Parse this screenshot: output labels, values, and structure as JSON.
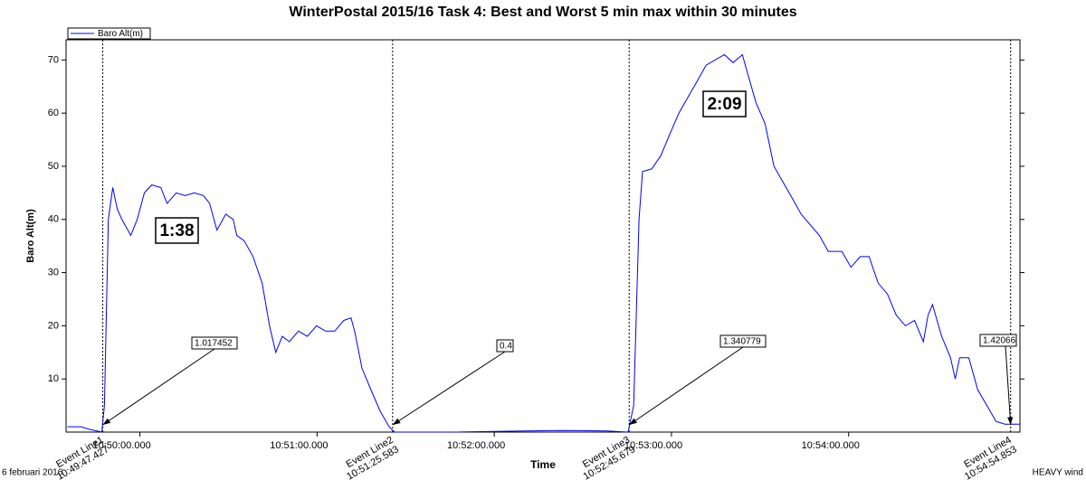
{
  "chart_data": {
    "type": "line",
    "title": "WinterPostal 2015/16 Task 4: Best and Worst 5 min max within 30 minutes",
    "x_label": "Time",
    "y_label": "Baro Alt(m)",
    "footer_left": "6 februari 2016",
    "footer_right": "HEAVY wind",
    "legend": "top-left",
    "xlim": [
      38975,
      39298
    ],
    "ylim": [
      0,
      73.8
    ],
    "xticks": [
      {
        "value": 39000,
        "label": "10:50:00.000"
      },
      {
        "value": 39060,
        "label": "10:51:00.000"
      },
      {
        "value": 39120,
        "label": "10:52:00.000"
      },
      {
        "value": 39180,
        "label": "10:53:00.000"
      },
      {
        "value": 39240,
        "label": "10:54:00.000"
      }
    ],
    "yticks": [
      10,
      20,
      30,
      40,
      50,
      60,
      70
    ],
    "x": [
      38975.5,
      38980.1,
      38983.1,
      38987.1,
      38988.0,
      38989.3,
      38990.8,
      38992.3,
      38993.9,
      38996.9,
      38999.1,
      39001.5,
      39004.0,
      39007.1,
      39009.2,
      39012.3,
      39015.3,
      39018.4,
      39021.5,
      39023.6,
      39026.1,
      39029.1,
      39031.6,
      39032.8,
      39035.3,
      39038.3,
      39041.4,
      39043.9,
      39046.0,
      39048.2,
      39050.6,
      39053.7,
      39056.7,
      39059.8,
      39062.9,
      39066.0,
      39069.0,
      39071.5,
      39072.7,
      39075.2,
      39078.2,
      39081.3,
      39084.4,
      39086.2,
      39090.5,
      39105.8,
      39130.4,
      39142.6,
      39158.0,
      39165.3,
      39167.2,
      39169.0,
      39170.2,
      39173.3,
      39176.4,
      39179.4,
      39182.5,
      39185.6,
      39188.7,
      39191.7,
      39194.8,
      39197.9,
      39200.9,
      39204.0,
      39205.5,
      39208.6,
      39211.7,
      39214.7,
      39217.8,
      39220.9,
      39223.9,
      39227.0,
      39230.1,
      39233.1,
      39237.7,
      39240.8,
      39243.9,
      39246.9,
      39250.0,
      39253.1,
      39256.1,
      39259.2,
      39262.3,
      39265.3,
      39266.9,
      39268.4,
      39271.5,
      39274.5,
      39276.1,
      39277.6,
      39280.7,
      39283.7,
      39286.8,
      39289.9,
      39292.9,
      39298.0
    ],
    "series": [
      {
        "name": "Baro Alt(m)",
        "color": "#0000ff",
        "values": [
          1,
          1,
          0.5,
          0,
          5,
          40,
          46,
          42,
          40,
          37,
          40,
          45,
          46.5,
          46,
          43,
          45,
          44.5,
          45,
          44.5,
          43,
          38,
          41,
          40,
          37,
          36,
          33,
          28,
          20,
          15,
          18,
          17,
          19,
          18,
          20,
          19,
          19,
          21,
          21.5,
          19,
          12,
          8,
          4,
          1,
          0,
          0,
          0,
          0.2,
          0.3,
          0.2,
          0,
          5,
          40,
          49,
          49.5,
          52,
          56,
          60,
          63,
          66,
          69,
          70,
          71,
          69.5,
          71,
          68,
          62,
          58,
          50,
          47,
          44,
          41,
          39,
          37,
          34,
          34,
          31,
          33,
          33,
          28,
          26,
          22,
          20,
          21,
          17,
          22,
          24,
          18,
          14,
          10,
          14,
          14,
          8,
          5,
          2,
          1.5,
          1.5
        ]
      }
    ],
    "event_lines": [
      {
        "label": "Event Line1",
        "time": "10:49:47.427",
        "x": 38987.427
      },
      {
        "label": "Event Line2",
        "time": "10:51:25.583",
        "x": 39085.583
      },
      {
        "label": "Event Line3",
        "time": "10:52:45.679",
        "x": 39165.679
      },
      {
        "label": "Event Line4",
        "time": "10:54:54.853",
        "x": 39294.853
      }
    ],
    "callouts": [
      "1.017452",
      "0.4",
      "1.340779",
      "1.42066"
    ],
    "durations": [
      "1:38",
      "2:09"
    ]
  }
}
